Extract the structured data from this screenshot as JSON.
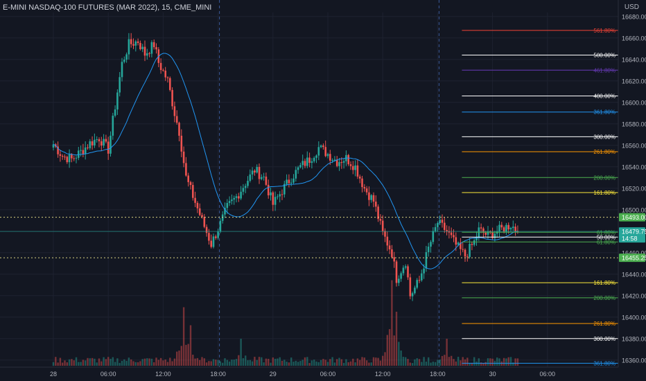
{
  "header": {
    "symbol_title": "E-MINI NASDAQ-100 FUTURES (MAR 2022), 15, CME_MINI",
    "currency": "USD"
  },
  "colors": {
    "background": "#131722",
    "up": "#26a69a",
    "down": "#ef5350",
    "ma": "#2196f3",
    "grid": "#1e2230"
  },
  "chart_data": {
    "type": "candlestick",
    "y_axis": {
      "ticks": [
        16680,
        16660,
        16640,
        16620,
        16600,
        16580,
        16560,
        16540,
        16520,
        16500,
        16480,
        16460,
        16440,
        16420,
        16400,
        16380,
        16360
      ],
      "range": [
        16355,
        16685
      ]
    },
    "x_axis": {
      "tick_labels": [
        {
          "label": "28",
          "t": 0
        },
        {
          "label": "06:00",
          "t": 24
        },
        {
          "label": "12:00",
          "t": 48
        },
        {
          "label": "18:00",
          "t": 72
        },
        {
          "label": "29",
          "t": 96
        },
        {
          "label": "06:00",
          "t": 120
        },
        {
          "label": "12:00",
          "t": 144
        },
        {
          "label": "18:00",
          "t": 168
        },
        {
          "label": "30",
          "t": 192
        },
        {
          "label": "06:00",
          "t": 216
        }
      ],
      "session_breaks": [
        72,
        168
      ]
    },
    "price_labels": [
      {
        "value": 16493.0,
        "text": "16493.00",
        "color": "#4caf50",
        "line": "dotted",
        "line_color": "#f0e68c"
      },
      {
        "value": 16479.75,
        "text": "16479.75",
        "subtext": "14:58",
        "color": "#26a69a",
        "line": "solid",
        "line_color": "#26a69a"
      },
      {
        "value": 16455.25,
        "text": "16455.25",
        "color": "#4caf50",
        "line": "dotted",
        "line_color": "#f0e68c"
      }
    ],
    "fib_levels": [
      {
        "label": "561.80%",
        "value": 16667,
        "color": "#f44336"
      },
      {
        "label": "500.00%",
        "value": 16644,
        "color": "#ffffff"
      },
      {
        "label": "461.80%",
        "value": 16630,
        "color": "#673ab7"
      },
      {
        "label": "400.00%",
        "value": 16606,
        "color": "#ffffff"
      },
      {
        "label": "361.80%",
        "value": 16591,
        "color": "#2196f3"
      },
      {
        "label": "300.00%",
        "value": 16568,
        "color": "#ffffff"
      },
      {
        "label": "261.80%",
        "value": 16554,
        "color": "#ff9800"
      },
      {
        "label": "200.00%",
        "value": 16530,
        "color": "#4caf50"
      },
      {
        "label": "161.80%",
        "value": 16516,
        "color": "#ffeb3b"
      },
      {
        "label": "61.80%",
        "value": 16479,
        "color": "#4caf50"
      },
      {
        "label": "50.00%",
        "value": 16474.5,
        "color": "#ffffff"
      },
      {
        "label": "61.80%",
        "value": 16470,
        "color": "#4caf50"
      },
      {
        "label": "161.80%",
        "value": 16432,
        "color": "#ffeb3b"
      },
      {
        "label": "200.00%",
        "value": 16418,
        "color": "#4caf50"
      },
      {
        "label": "261.80%",
        "value": 16394,
        "color": "#ff9800"
      },
      {
        "label": "300.00%",
        "value": 16380,
        "color": "#ffffff"
      },
      {
        "label": "361.80%",
        "value": 16357,
        "color": "#2196f3"
      }
    ],
    "fib_start_t": 178,
    "anchors": [
      [
        0,
        16561
      ],
      [
        4,
        16550
      ],
      [
        8,
        16547
      ],
      [
        12,
        16554
      ],
      [
        16,
        16562
      ],
      [
        20,
        16567
      ],
      [
        24,
        16556
      ],
      [
        28,
        16610
      ],
      [
        30,
        16636
      ],
      [
        33,
        16654
      ],
      [
        37,
        16657
      ],
      [
        40,
        16645
      ],
      [
        44,
        16654
      ],
      [
        46,
        16637
      ],
      [
        50,
        16620
      ],
      [
        53,
        16590
      ],
      [
        55,
        16573
      ],
      [
        58,
        16530
      ],
      [
        62,
        16507
      ],
      [
        65,
        16490
      ],
      [
        69,
        16468
      ],
      [
        72,
        16482
      ],
      [
        76,
        16502
      ],
      [
        80,
        16512
      ],
      [
        84,
        16525
      ],
      [
        88,
        16537
      ],
      [
        92,
        16530
      ],
      [
        96,
        16505
      ],
      [
        100,
        16518
      ],
      [
        104,
        16530
      ],
      [
        108,
        16540
      ],
      [
        112,
        16547
      ],
      [
        116,
        16558
      ],
      [
        120,
        16552
      ],
      [
        124,
        16545
      ],
      [
        128,
        16548
      ],
      [
        132,
        16540
      ],
      [
        136,
        16520
      ],
      [
        140,
        16508
      ],
      [
        144,
        16478
      ],
      [
        148,
        16460
      ],
      [
        150,
        16436
      ],
      [
        154,
        16452
      ],
      [
        156,
        16420
      ],
      [
        160,
        16434
      ],
      [
        164,
        16464
      ],
      [
        168,
        16488
      ],
      [
        172,
        16480
      ],
      [
        176,
        16467
      ],
      [
        180,
        16457
      ],
      [
        184,
        16470
      ],
      [
        186,
        16481
      ],
      [
        190,
        16476
      ],
      [
        196,
        16482
      ],
      [
        200,
        16486
      ],
      [
        203,
        16479.75
      ]
    ],
    "volume": {
      "baseline_level": "low",
      "spikes": [
        {
          "t": 57,
          "value": 0.65
        },
        {
          "t": 60,
          "value": 0.45
        },
        {
          "t": 82,
          "value": 0.3
        },
        {
          "t": 148,
          "value": 0.95
        },
        {
          "t": 150,
          "value": 0.6
        },
        {
          "t": 172,
          "value": 0.3
        }
      ]
    }
  }
}
